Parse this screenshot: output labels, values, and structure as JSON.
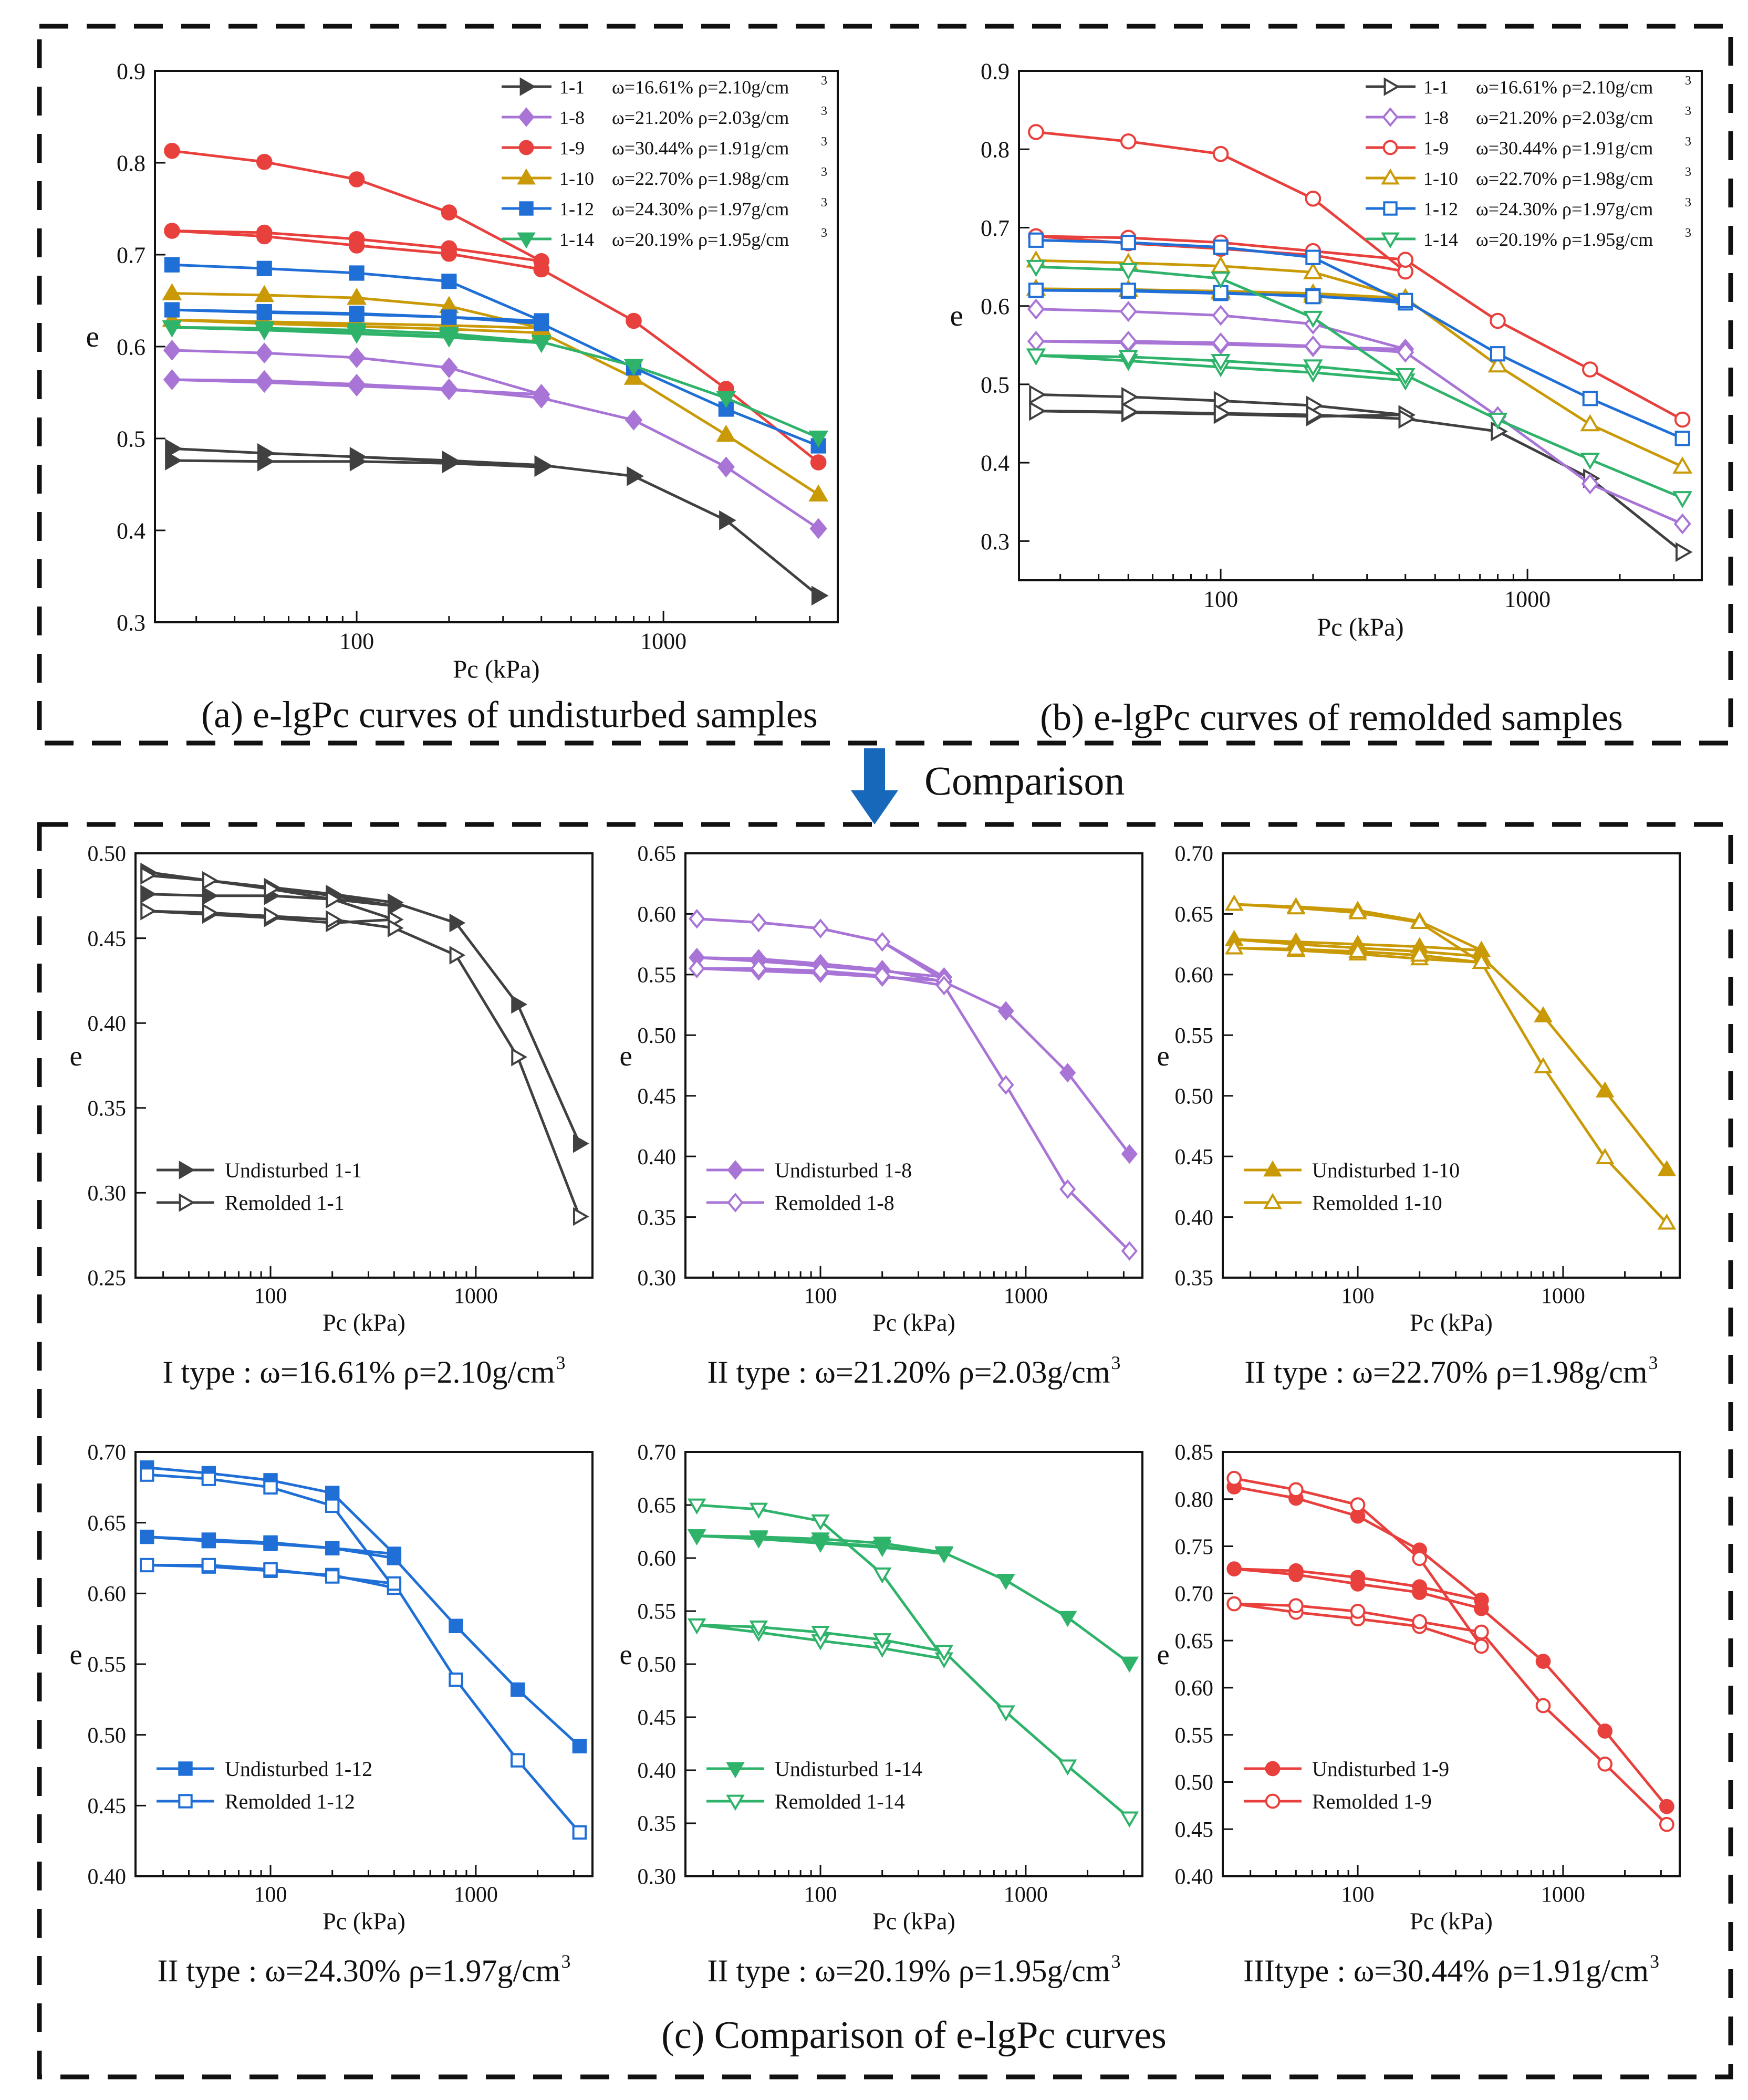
{
  "figure": {
    "panel_a_caption": "(a) e-lgPc curves of undisturbed samples",
    "panel_b_caption": "(b) e-lgPc curves of remolded samples",
    "panel_c_caption": "(c) Comparison of e-lgPc curves",
    "comparison_label": "Comparison"
  },
  "colors": {
    "1-1": "#404040",
    "1-8": "#a874d6",
    "1-9": "#e8403d",
    "1-10": "#c99a06",
    "1-12": "#1f6fd6",
    "1-14": "#2fb36a",
    "arrow": "#1768bb",
    "frame": "#111111"
  },
  "chart_data": [
    {
      "id": "a",
      "type": "line",
      "xscale": "log",
      "xlabel": "Pc (kPa)",
      "ylabel": "e",
      "xlim": [
        22,
        3700
      ],
      "ylim": [
        0.3,
        0.9
      ],
      "yticks": [
        "0.3",
        "0.4",
        "0.5",
        "0.6",
        "0.7",
        "0.8",
        "0.9"
      ],
      "xticks": [
        "100",
        "1000"
      ],
      "legend": "top-right",
      "series": [
        {
          "sample": "1-1",
          "label": "1-1",
          "props": "ω=16.61%  ρ=2.10g/cm",
          "marker": "tri-right",
          "filled": true,
          "x": [
            25,
            50,
            100,
            200,
            400,
            200,
            100,
            50,
            25,
            50,
            100,
            200,
            400,
            800,
            1600,
            3200
          ],
          "y": [
            0.476,
            0.475,
            0.475,
            0.473,
            0.469,
            0.475,
            0.48,
            0.484,
            0.489,
            0.484,
            0.48,
            0.476,
            0.471,
            0.459,
            0.411,
            0.329
          ]
        },
        {
          "sample": "1-8",
          "label": "1-8",
          "props": "ω=21.20%  ρ=2.03g/cm",
          "marker": "diamond",
          "filled": true,
          "x": [
            25,
            50,
            100,
            200,
            400,
            200,
            100,
            50,
            25,
            50,
            100,
            200,
            400,
            800,
            1600,
            3200
          ],
          "y": [
            0.596,
            0.593,
            0.588,
            0.577,
            0.548,
            0.553,
            0.557,
            0.561,
            0.564,
            0.563,
            0.559,
            0.554,
            0.544,
            0.52,
            0.469,
            0.402
          ]
        },
        {
          "sample": "1-9",
          "label": "1-9",
          "props": "ω=30.44%  ρ=1.91g/cm",
          "marker": "circle",
          "filled": true,
          "x": [
            25,
            50,
            100,
            200,
            400,
            200,
            100,
            50,
            25,
            50,
            100,
            200,
            400,
            800,
            1600,
            3200
          ],
          "y": [
            0.813,
            0.801,
            0.782,
            0.746,
            0.693,
            0.707,
            0.717,
            0.724,
            0.726,
            0.72,
            0.71,
            0.701,
            0.684,
            0.628,
            0.554,
            0.474
          ]
        },
        {
          "sample": "1-10",
          "label": "1-10",
          "props": "ω=22.70%  ρ=1.98g/cm",
          "marker": "tri-up",
          "filled": true,
          "x": [
            25,
            50,
            100,
            200,
            400,
            200,
            100,
            50,
            25,
            50,
            100,
            200,
            400,
            800,
            1600,
            3200
          ],
          "y": [
            0.658,
            0.656,
            0.653,
            0.644,
            0.62,
            0.623,
            0.625,
            0.627,
            0.629,
            0.625,
            0.622,
            0.619,
            0.615,
            0.566,
            0.504,
            0.439
          ]
        },
        {
          "sample": "1-12",
          "label": "1-12",
          "props": "ω=24.30%  ρ=1.97g/cm",
          "marker": "square",
          "filled": true,
          "x": [
            25,
            50,
            100,
            200,
            400,
            200,
            100,
            50,
            25,
            50,
            100,
            200,
            400,
            800,
            1600,
            3200
          ],
          "y": [
            0.689,
            0.685,
            0.68,
            0.671,
            0.628,
            0.632,
            0.635,
            0.637,
            0.64,
            0.638,
            0.636,
            0.632,
            0.625,
            0.577,
            0.532,
            0.492
          ]
        },
        {
          "sample": "1-14",
          "label": "1-14",
          "props": "ω=20.19%  ρ=1.95g/cm",
          "marker": "tri-down",
          "filled": true,
          "x": [
            25,
            50,
            100,
            200,
            400,
            200,
            100,
            50,
            25,
            50,
            100,
            200,
            400,
            800,
            1600,
            3200
          ],
          "y": [
            0.621,
            0.619,
            0.615,
            0.611,
            0.604,
            0.61,
            0.614,
            0.618,
            0.621,
            0.62,
            0.618,
            0.614,
            0.605,
            0.579,
            0.544,
            0.501
          ]
        }
      ]
    },
    {
      "id": "b",
      "type": "line",
      "xscale": "log",
      "xlabel": "Pc (kPa)",
      "ylabel": "e",
      "xlim": [
        22,
        3700
      ],
      "ylim": [
        0.25,
        0.9
      ],
      "yticks": [
        "0.3",
        "0.4",
        "0.5",
        "0.6",
        "0.7",
        "0.8",
        "0.9"
      ],
      "xticks": [
        "100",
        "1000"
      ],
      "legend": "top-right",
      "series": [
        {
          "sample": "1-1",
          "label": "1-1",
          "props": "ω=16.61%  ρ=2.10g/cm",
          "marker": "tri-right",
          "filled": false,
          "x": [
            25,
            50,
            100,
            200,
            400,
            200,
            100,
            50,
            25,
            50,
            100,
            200,
            400,
            800,
            1600,
            3200
          ],
          "y": [
            0.487,
            0.484,
            0.479,
            0.473,
            0.461,
            0.459,
            0.462,
            0.464,
            0.466,
            0.465,
            0.463,
            0.461,
            0.456,
            0.44,
            0.38,
            0.286
          ]
        },
        {
          "sample": "1-8",
          "label": "1-8",
          "props": "ω=21.20%  ρ=2.03g/cm",
          "marker": "diamond",
          "filled": false,
          "x": [
            25,
            50,
            100,
            200,
            400,
            200,
            100,
            50,
            25,
            50,
            100,
            200,
            400,
            800,
            1600,
            3200
          ],
          "y": [
            0.596,
            0.593,
            0.588,
            0.577,
            0.545,
            0.548,
            0.551,
            0.553,
            0.555,
            0.555,
            0.553,
            0.549,
            0.541,
            0.459,
            0.373,
            0.322
          ]
        },
        {
          "sample": "1-9",
          "label": "1-9",
          "props": "ω=30.44%  ρ=1.91g/cm",
          "marker": "circle",
          "filled": false,
          "x": [
            25,
            50,
            100,
            200,
            400,
            200,
            100,
            50,
            25,
            50,
            100,
            200,
            400,
            800,
            1600,
            3200
          ],
          "y": [
            0.822,
            0.81,
            0.794,
            0.737,
            0.644,
            0.665,
            0.673,
            0.68,
            0.689,
            0.687,
            0.681,
            0.67,
            0.659,
            0.581,
            0.519,
            0.455
          ]
        },
        {
          "sample": "1-10",
          "label": "1-10",
          "props": "ω=22.70%  ρ=1.98g/cm",
          "marker": "tri-up",
          "filled": false,
          "x": [
            25,
            50,
            100,
            200,
            400,
            200,
            100,
            50,
            25,
            50,
            100,
            200,
            400,
            800,
            1600,
            3200
          ],
          "y": [
            0.658,
            0.655,
            0.651,
            0.643,
            0.61,
            0.613,
            0.617,
            0.62,
            0.622,
            0.621,
            0.619,
            0.616,
            0.61,
            0.524,
            0.449,
            0.395
          ]
        },
        {
          "sample": "1-12",
          "label": "1-12",
          "props": "ω=24.30%  ρ=1.97g/cm",
          "marker": "square",
          "filled": false,
          "x": [
            25,
            50,
            100,
            200,
            400,
            200,
            100,
            50,
            25,
            50,
            100,
            200,
            400,
            800,
            1600,
            3200
          ],
          "y": [
            0.684,
            0.681,
            0.675,
            0.662,
            0.604,
            0.613,
            0.616,
            0.619,
            0.62,
            0.62,
            0.617,
            0.612,
            0.607,
            0.539,
            0.482,
            0.431
          ]
        },
        {
          "sample": "1-14",
          "label": "1-14",
          "props": "ω=20.19%  ρ=1.95g/cm",
          "marker": "tri-down",
          "filled": false,
          "x": [
            25,
            50,
            100,
            200,
            400,
            200,
            100,
            50,
            25,
            50,
            100,
            200,
            400,
            800,
            1600,
            3200
          ],
          "y": [
            0.65,
            0.646,
            0.635,
            0.585,
            0.505,
            0.515,
            0.522,
            0.53,
            0.537,
            0.535,
            0.53,
            0.523,
            0.512,
            0.455,
            0.404,
            0.355
          ]
        }
      ]
    },
    {
      "id": "c1",
      "type": "line",
      "xscale": "log",
      "sample": "1-1",
      "xlabel": "Pc (kPa)",
      "ylabel": "e",
      "xlim": [
        22,
        3700
      ],
      "ylim": [
        0.25,
        0.5
      ],
      "yticks": [
        "0.25",
        "0.30",
        "0.35",
        "0.40",
        "0.45",
        "0.50"
      ],
      "xticks": [
        "100",
        "1000"
      ],
      "legend": "bottom-left",
      "legend_labels": [
        "Undisturbed 1-1",
        "Remolded 1-1"
      ],
      "caption": "I type : ω=16.61%  ρ=2.10g/cm",
      "caption_sup": "3"
    },
    {
      "id": "c2",
      "type": "line",
      "xscale": "log",
      "sample": "1-8",
      "xlabel": "Pc (kPa)",
      "ylabel": "e",
      "xlim": [
        22,
        3700
      ],
      "ylim": [
        0.3,
        0.65
      ],
      "yticks": [
        "0.30",
        "0.35",
        "0.40",
        "0.45",
        "0.50",
        "0.55",
        "0.60",
        "0.65"
      ],
      "xticks": [
        "100",
        "1000"
      ],
      "legend": "bottom-left",
      "legend_labels": [
        "Undisturbed 1-8",
        "Remolded 1-8"
      ],
      "caption": "II type : ω=21.20%  ρ=2.03g/cm",
      "caption_sup": "3"
    },
    {
      "id": "c3",
      "type": "line",
      "xscale": "log",
      "sample": "1-10",
      "xlabel": "Pc (kPa)",
      "ylabel": "e",
      "xlim": [
        22,
        3700
      ],
      "ylim": [
        0.35,
        0.7
      ],
      "yticks": [
        "0.35",
        "0.40",
        "0.45",
        "0.50",
        "0.55",
        "0.60",
        "0.65",
        "0.70"
      ],
      "xticks": [
        "100",
        "1000"
      ],
      "legend": "bottom-left",
      "legend_labels": [
        "Undisturbed 1-10",
        "Remolded 1-10"
      ],
      "caption": "II type : ω=22.70%  ρ=1.98g/cm",
      "caption_sup": "3"
    },
    {
      "id": "c4",
      "type": "line",
      "xscale": "log",
      "sample": "1-12",
      "xlabel": "Pc (kPa)",
      "ylabel": "e",
      "xlim": [
        22,
        3700
      ],
      "ylim": [
        0.4,
        0.7
      ],
      "yticks": [
        "0.40",
        "0.45",
        "0.50",
        "0.55",
        "0.60",
        "0.65",
        "0.70"
      ],
      "xticks": [
        "100",
        "1000"
      ],
      "legend": "bottom-left",
      "legend_labels": [
        "Undisturbed 1-12",
        "Remolded 1-12"
      ],
      "caption": "II type : ω=24.30%  ρ=1.97g/cm",
      "caption_sup": "3"
    },
    {
      "id": "c5",
      "type": "line",
      "xscale": "log",
      "sample": "1-14",
      "xlabel": "Pc (kPa)",
      "ylabel": "e",
      "xlim": [
        22,
        3700
      ],
      "ylim": [
        0.3,
        0.7
      ],
      "yticks": [
        "0.30",
        "0.35",
        "0.40",
        "0.45",
        "0.50",
        "0.55",
        "0.60",
        "0.65",
        "0.70"
      ],
      "xticks": [
        "100",
        "1000"
      ],
      "legend": "bottom-left",
      "legend_labels": [
        "Undisturbed 1-14",
        "Remolded 1-14"
      ],
      "caption": "II type : ω=20.19%  ρ=1.95g/cm",
      "caption_sup": "3"
    },
    {
      "id": "c6",
      "type": "line",
      "xscale": "log",
      "sample": "1-9",
      "xlabel": "Pc (kPa)",
      "ylabel": "e",
      "xlim": [
        22,
        3700
      ],
      "ylim": [
        0.4,
        0.85
      ],
      "yticks": [
        "0.40",
        "0.45",
        "0.50",
        "0.55",
        "0.60",
        "0.65",
        "0.70",
        "0.75",
        "0.80",
        "0.85"
      ],
      "xticks": [
        "100",
        "1000"
      ],
      "legend": "bottom-left",
      "legend_labels": [
        "Undisturbed 1-9",
        "Remolded 1-9"
      ],
      "caption": "IIItype : ω=30.44%  ρ=1.91g/cm",
      "caption_sup": "3"
    }
  ]
}
